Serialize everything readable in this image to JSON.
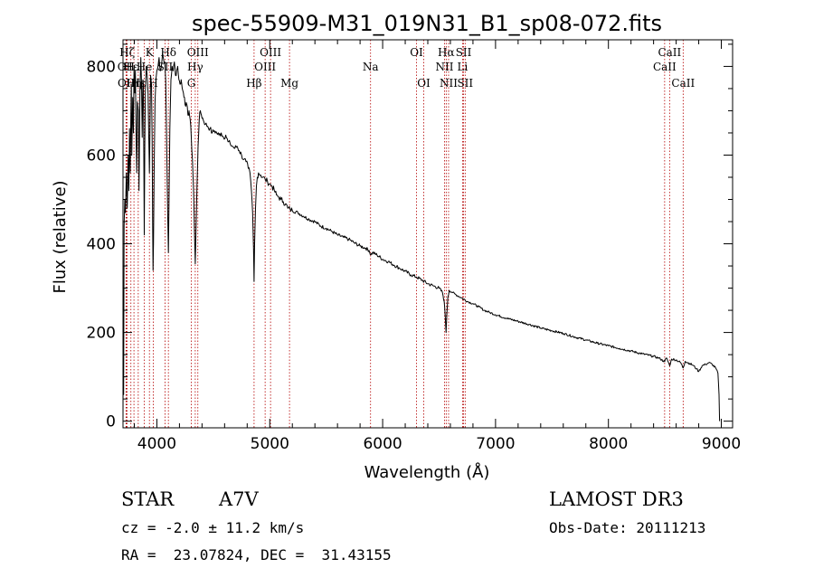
{
  "chart_data": {
    "type": "line",
    "title": "spec-55909-M31_019N31_B1_sp08-072.fits",
    "xlabel": "Wavelength (Å)",
    "ylabel": "Flux (relative)",
    "xlim": [
      3700,
      9100
    ],
    "ylim": [
      -15,
      860
    ],
    "xticks": [
      4000,
      5000,
      6000,
      7000,
      8000,
      9000
    ],
    "yticks": [
      0,
      200,
      400,
      600,
      800
    ],
    "series": [
      {
        "name": "spectrum",
        "color": "#000000",
        "points": [
          [
            3700,
            0
          ],
          [
            3702,
            170
          ],
          [
            3706,
            60
          ],
          [
            3710,
            440
          ],
          [
            3716,
            500
          ],
          [
            3722,
            470
          ],
          [
            3730,
            560
          ],
          [
            3738,
            480
          ],
          [
            3746,
            600
          ],
          [
            3752,
            520
          ],
          [
            3758,
            660
          ],
          [
            3764,
            560
          ],
          [
            3770,
            690
          ],
          [
            3774,
            760
          ],
          [
            3778,
            600
          ],
          [
            3786,
            730
          ],
          [
            3792,
            650
          ],
          [
            3798,
            800
          ],
          [
            3804,
            740
          ],
          [
            3810,
            790
          ],
          [
            3816,
            640
          ],
          [
            3822,
            560
          ],
          [
            3828,
            720
          ],
          [
            3836,
            700
          ],
          [
            3842,
            520
          ],
          [
            3850,
            740
          ],
          [
            3858,
            820
          ],
          [
            3864,
            760
          ],
          [
            3870,
            640
          ],
          [
            3876,
            770
          ],
          [
            3880,
            760
          ],
          [
            3884,
            600
          ],
          [
            3888,
            420
          ],
          [
            3893,
            620
          ],
          [
            3898,
            740
          ],
          [
            3906,
            800
          ],
          [
            3914,
            780
          ],
          [
            3922,
            740
          ],
          [
            3928,
            640
          ],
          [
            3934,
            560
          ],
          [
            3938,
            640
          ],
          [
            3944,
            780
          ],
          [
            3952,
            760
          ],
          [
            3958,
            640
          ],
          [
            3963,
            440
          ],
          [
            3966,
            340
          ],
          [
            3970,
            400
          ],
          [
            3976,
            560
          ],
          [
            3984,
            720
          ],
          [
            3992,
            770
          ],
          [
            4000,
            790
          ],
          [
            4010,
            800
          ],
          [
            4020,
            820
          ],
          [
            4030,
            790
          ],
          [
            4040,
            800
          ],
          [
            4050,
            830
          ],
          [
            4060,
            815
          ],
          [
            4070,
            810
          ],
          [
            4078,
            770
          ],
          [
            4086,
            640
          ],
          [
            4095,
            480
          ],
          [
            4102,
            380
          ],
          [
            4108,
            500
          ],
          [
            4115,
            660
          ],
          [
            4125,
            770
          ],
          [
            4135,
            800
          ],
          [
            4145,
            790
          ],
          [
            4155,
            810
          ],
          [
            4165,
            780
          ],
          [
            4175,
            790
          ],
          [
            4185,
            800
          ],
          [
            4195,
            770
          ],
          [
            4205,
            760
          ],
          [
            4215,
            770
          ],
          [
            4225,
            750
          ],
          [
            4235,
            740
          ],
          [
            4245,
            730
          ],
          [
            4255,
            710
          ],
          [
            4265,
            715
          ],
          [
            4275,
            690
          ],
          [
            4285,
            700
          ],
          [
            4295,
            680
          ],
          [
            4305,
            640
          ],
          [
            4315,
            590
          ],
          [
            4325,
            520
          ],
          [
            4334,
            420
          ],
          [
            4340,
            355
          ],
          [
            4346,
            420
          ],
          [
            4355,
            530
          ],
          [
            4365,
            620
          ],
          [
            4375,
            680
          ],
          [
            4385,
            700
          ],
          [
            4395,
            690
          ],
          [
            4410,
            680
          ],
          [
            4430,
            670
          ],
          [
            4450,
            665
          ],
          [
            4470,
            660
          ],
          [
            4490,
            650
          ],
          [
            4510,
            655
          ],
          [
            4530,
            650
          ],
          [
            4550,
            645
          ],
          [
            4570,
            650
          ],
          [
            4590,
            640
          ],
          [
            4610,
            645
          ],
          [
            4630,
            630
          ],
          [
            4650,
            625
          ],
          [
            4670,
            620
          ],
          [
            4690,
            615
          ],
          [
            4710,
            620
          ],
          [
            4730,
            610
          ],
          [
            4750,
            600
          ],
          [
            4770,
            590
          ],
          [
            4790,
            585
          ],
          [
            4810,
            570
          ],
          [
            4825,
            560
          ],
          [
            4838,
            520
          ],
          [
            4848,
            470
          ],
          [
            4856,
            390
          ],
          [
            4861,
            315
          ],
          [
            4866,
            400
          ],
          [
            4874,
            480
          ],
          [
            4882,
            530
          ],
          [
            4890,
            550
          ],
          [
            4900,
            560
          ],
          [
            4920,
            555
          ],
          [
            4940,
            550
          ],
          [
            4960,
            545
          ],
          [
            4980,
            540
          ],
          [
            5000,
            535
          ],
          [
            5020,
            530
          ],
          [
            5040,
            520
          ],
          [
            5060,
            510
          ],
          [
            5080,
            505
          ],
          [
            5100,
            500
          ],
          [
            5120,
            495
          ],
          [
            5140,
            490
          ],
          [
            5160,
            480
          ],
          [
            5180,
            478
          ],
          [
            5200,
            475
          ],
          [
            5250,
            470
          ],
          [
            5300,
            462
          ],
          [
            5350,
            455
          ],
          [
            5400,
            450
          ],
          [
            5450,
            440
          ],
          [
            5500,
            435
          ],
          [
            5550,
            428
          ],
          [
            5600,
            420
          ],
          [
            5650,
            415
          ],
          [
            5700,
            410
          ],
          [
            5750,
            402
          ],
          [
            5800,
            395
          ],
          [
            5850,
            390
          ],
          [
            5880,
            385
          ],
          [
            5895,
            375
          ],
          [
            5910,
            380
          ],
          [
            5950,
            375
          ],
          [
            6000,
            365
          ],
          [
            6050,
            360
          ],
          [
            6100,
            352
          ],
          [
            6150,
            345
          ],
          [
            6200,
            338
          ],
          [
            6250,
            330
          ],
          [
            6300,
            325
          ],
          [
            6350,
            318
          ],
          [
            6400,
            310
          ],
          [
            6450,
            305
          ],
          [
            6500,
            300
          ],
          [
            6530,
            290
          ],
          [
            6545,
            270
          ],
          [
            6555,
            235
          ],
          [
            6562,
            200
          ],
          [
            6568,
            240
          ],
          [
            6578,
            280
          ],
          [
            6590,
            295
          ],
          [
            6620,
            290
          ],
          [
            6650,
            285
          ],
          [
            6700,
            278
          ],
          [
            6750,
            270
          ],
          [
            6800,
            265
          ],
          [
            6850,
            258
          ],
          [
            6900,
            250
          ],
          [
            6950,
            245
          ],
          [
            7000,
            240
          ],
          [
            7100,
            232
          ],
          [
            7200,
            225
          ],
          [
            7300,
            218
          ],
          [
            7400,
            210
          ],
          [
            7500,
            204
          ],
          [
            7600,
            198
          ],
          [
            7700,
            190
          ],
          [
            7800,
            183
          ],
          [
            7900,
            176
          ],
          [
            8000,
            170
          ],
          [
            8100,
            164
          ],
          [
            8200,
            158
          ],
          [
            8300,
            152
          ],
          [
            8400,
            146
          ],
          [
            8450,
            142
          ],
          [
            8498,
            134
          ],
          [
            8510,
            142
          ],
          [
            8520,
            140
          ],
          [
            8542,
            125
          ],
          [
            8560,
            140
          ],
          [
            8600,
            138
          ],
          [
            8640,
            132
          ],
          [
            8662,
            120
          ],
          [
            8680,
            135
          ],
          [
            8720,
            130
          ],
          [
            8750,
            126
          ],
          [
            8780,
            118
          ],
          [
            8800,
            112
          ],
          [
            8830,
            125
          ],
          [
            8860,
            128
          ],
          [
            8890,
            132
          ],
          [
            8920,
            128
          ],
          [
            8950,
            120
          ],
          [
            8970,
            108
          ],
          [
            8980,
            60
          ],
          [
            8985,
            0
          ]
        ]
      }
    ],
    "spectral_lines": {
      "color": "#b40000",
      "lines": [
        {
          "label": "Hζ",
          "x": 3737,
          "row": 1
        },
        {
          "label": "OII",
          "x": 3727,
          "row": 2
        },
        {
          "label": "OII",
          "x": 3729,
          "row": 3
        },
        {
          "label": "Hε",
          "x": 3770,
          "row": 2
        },
        {
          "label": "Hη",
          "x": 3797,
          "row": 3
        },
        {
          "label": "Hε",
          "x": 3835,
          "row": 3
        },
        {
          "label": "K",
          "x": 3934,
          "row": 1
        },
        {
          "label": "He",
          "x": 3889,
          "row": 2
        },
        {
          "label": "H",
          "x": 3969,
          "row": 3
        },
        {
          "label": "Hδ",
          "x": 4102,
          "row": 1
        },
        {
          "label": "SII",
          "x": 4072,
          "row": 2
        },
        {
          "label": "OIII",
          "x": 4363,
          "row": 1
        },
        {
          "label": "Hγ",
          "x": 4340,
          "row": 2
        },
        {
          "label": "G",
          "x": 4305,
          "row": 3
        },
        {
          "label": "Hβ",
          "x": 4861,
          "row": 3
        },
        {
          "label": "OIII",
          "x": 5007,
          "row": 1
        },
        {
          "label": "OIII",
          "x": 4959,
          "row": 2
        },
        {
          "label": "Mg",
          "x": 5175,
          "row": 3
        },
        {
          "label": "Na",
          "x": 5893,
          "row": 2
        },
        {
          "label": "OI",
          "x": 6300,
          "row": 1
        },
        {
          "label": "OI",
          "x": 6364,
          "row": 3
        },
        {
          "label": "Hα",
          "x": 6563,
          "row": 1
        },
        {
          "label": "NII",
          "x": 6548,
          "row": 2
        },
        {
          "label": "NII",
          "x": 6584,
          "row": 3
        },
        {
          "label": "SII",
          "x": 6717,
          "row": 1
        },
        {
          "label": "Li",
          "x": 6708,
          "row": 2
        },
        {
          "label": "SII",
          "x": 6731,
          "row": 3
        },
        {
          "label": "CaII",
          "x": 8498,
          "row": 2
        },
        {
          "label": "CaII",
          "x": 8542,
          "row": 1
        },
        {
          "label": "CaII",
          "x": 8662,
          "row": 3
        }
      ]
    }
  },
  "info": {
    "object_class": "STAR",
    "subclass": "A7V",
    "survey": "LAMOST DR3",
    "redshift": "cz = -2.0 ± 11.2 km/s",
    "obs_date": "Obs-Date: 20111213",
    "coords": "RA =  23.07824, DEC =  31.43155"
  }
}
